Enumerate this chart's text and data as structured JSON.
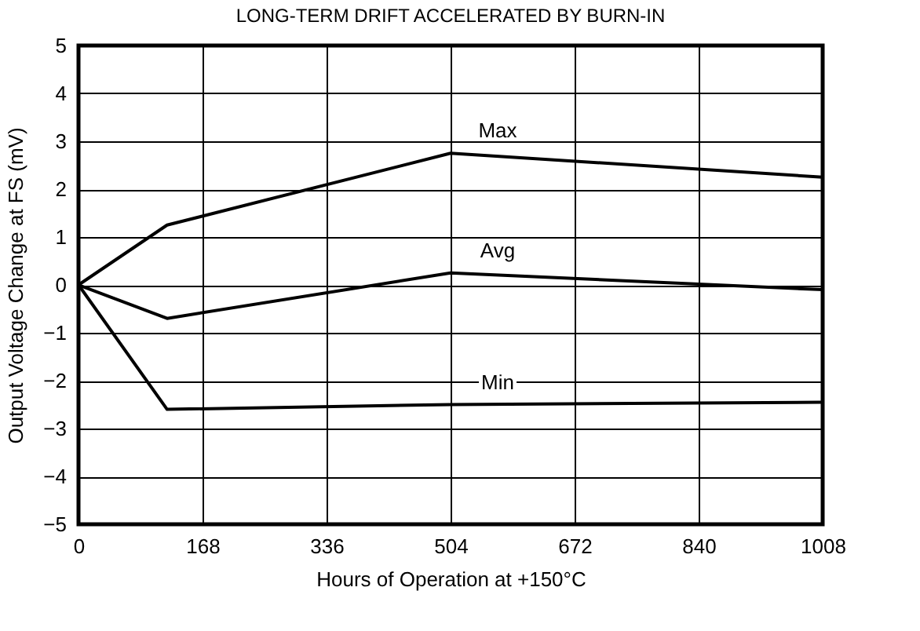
{
  "chart_data": {
    "type": "line",
    "title": "LONG-TERM DRIFT ACCELERATED BY BURN-IN",
    "xlabel": "Hours of Operation at +150°C",
    "ylabel": "Output Voltage Change at FS (mV)",
    "x": [
      0,
      120,
      504,
      1008
    ],
    "series": [
      {
        "name": "Max",
        "color": "#000000",
        "values": [
          0,
          1.25,
          2.75,
          2.25
        ]
      },
      {
        "name": "Avg",
        "color": "#000000",
        "values": [
          0,
          -0.7,
          0.25,
          -0.1
        ]
      },
      {
        "name": "Min",
        "color": "#000000",
        "values": [
          0,
          -2.6,
          -2.5,
          -2.45
        ]
      }
    ],
    "xlim": [
      0,
      1008
    ],
    "xticks": [
      0,
      168,
      336,
      504,
      672,
      840,
      1008
    ],
    "ylim": [
      -5,
      5
    ],
    "yticks": [
      {
        "value": -5,
        "label": "−5"
      },
      {
        "value": -4,
        "label": "−4"
      },
      {
        "value": -3,
        "label": "−3"
      },
      {
        "value": -2,
        "label": "−2"
      },
      {
        "value": -1,
        "label": "−1"
      },
      0,
      1,
      2,
      3,
      4,
      5
    ],
    "grid": true,
    "legend": false,
    "marker": "none",
    "line_style": "solid"
  }
}
